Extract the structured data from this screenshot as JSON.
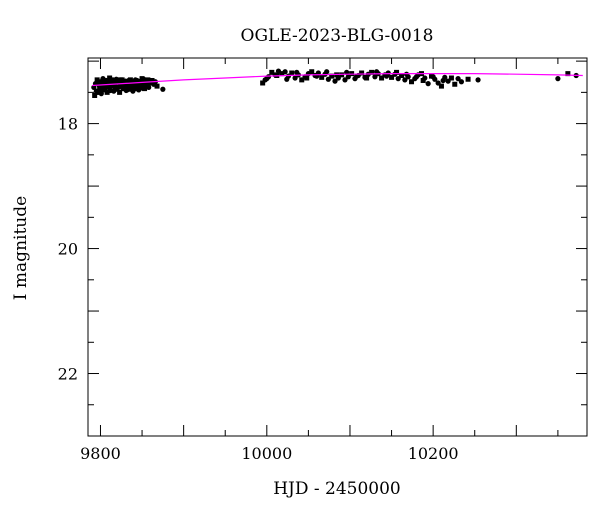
{
  "chart_data": {
    "type": "scatter",
    "title": "OGLE-2023-BLG-0018",
    "xlabel": "HJD - 2450000",
    "ylabel": "I magnitude",
    "xlim": [
      9785,
      10385
    ],
    "ylim": [
      23.0,
      16.95
    ],
    "y_inverted": true,
    "grid": false,
    "x_ticks": [
      9800,
      10000,
      10200
    ],
    "y_ticks": [
      18,
      20,
      22
    ],
    "x_minor_step": 50,
    "y_minor_step": 0.5,
    "colors": {
      "points": "#000000",
      "model": "#ff00ff",
      "axes": "#000000"
    },
    "series": [
      {
        "points": [
          [
            9792,
            17.42
          ],
          [
            9793,
            17.55
          ],
          [
            9794,
            17.36
          ],
          [
            9795,
            17.48
          ],
          [
            9796,
            17.3
          ],
          [
            9797,
            17.5
          ],
          [
            9798,
            17.38
          ],
          [
            9799,
            17.45
          ],
          [
            9800,
            17.33
          ],
          [
            9801,
            17.52
          ],
          [
            9802,
            17.4
          ],
          [
            9803,
            17.28
          ],
          [
            9804,
            17.46
          ],
          [
            9805,
            17.35
          ],
          [
            9806,
            17.43
          ],
          [
            9807,
            17.31
          ],
          [
            9808,
            17.5
          ],
          [
            9809,
            17.37
          ],
          [
            9810,
            17.42
          ],
          [
            9811,
            17.27
          ],
          [
            9812,
            17.47
          ],
          [
            9813,
            17.34
          ],
          [
            9814,
            17.4
          ],
          [
            9815,
            17.3
          ],
          [
            9816,
            17.48
          ],
          [
            9817,
            17.36
          ],
          [
            9818,
            17.43
          ],
          [
            9819,
            17.29
          ],
          [
            9820,
            17.45
          ],
          [
            9821,
            17.33
          ],
          [
            9822,
            17.41
          ],
          [
            9823,
            17.5
          ],
          [
            9824,
            17.35
          ],
          [
            9825,
            17.38
          ],
          [
            9826,
            17.3
          ],
          [
            9827,
            17.44
          ],
          [
            9828,
            17.36
          ],
          [
            9829,
            17.42
          ],
          [
            9830,
            17.32
          ],
          [
            9831,
            17.47
          ],
          [
            9832,
            17.37
          ],
          [
            9833,
            17.4
          ],
          [
            9834,
            17.31
          ],
          [
            9835,
            17.45
          ],
          [
            9836,
            17.35
          ],
          [
            9837,
            17.42
          ],
          [
            9838,
            17.33
          ],
          [
            9839,
            17.48
          ],
          [
            9840,
            17.36
          ],
          [
            9841,
            17.41
          ],
          [
            9842,
            17.3
          ],
          [
            9843,
            17.44
          ],
          [
            9844,
            17.38
          ],
          [
            9845,
            17.34
          ],
          [
            9846,
            17.46
          ],
          [
            9847,
            17.39
          ],
          [
            9848,
            17.32
          ],
          [
            9849,
            17.43
          ],
          [
            9850,
            17.28
          ],
          [
            9851,
            17.4
          ],
          [
            9852,
            17.36
          ],
          [
            9853,
            17.44
          ],
          [
            9854,
            17.33
          ],
          [
            9855,
            17.38
          ],
          [
            9857,
            17.3
          ],
          [
            9858,
            17.42
          ],
          [
            9860,
            17.35
          ],
          [
            9862,
            17.31
          ],
          [
            9864,
            17.37
          ],
          [
            9866,
            17.33
          ],
          [
            9868,
            17.4
          ],
          [
            9875,
            17.45
          ],
          [
            9796,
            17.34
          ],
          [
            9800,
            17.45
          ],
          [
            9804,
            17.32
          ],
          [
            9808,
            17.4
          ],
          [
            9812,
            17.31
          ],
          [
            9816,
            17.39
          ],
          [
            9820,
            17.44
          ],
          [
            9824,
            17.3
          ],
          [
            9828,
            17.4
          ],
          [
            9832,
            17.46
          ],
          [
            9836,
            17.3
          ],
          [
            9840,
            17.44
          ],
          [
            9844,
            17.31
          ],
          [
            9848,
            17.41
          ],
          [
            9852,
            17.29
          ],
          [
            9856,
            17.37
          ],
          [
            9995,
            17.35
          ],
          [
            9998,
            17.3
          ],
          [
            10002,
            17.25
          ],
          [
            10006,
            17.18
          ],
          [
            10010,
            17.22
          ],
          [
            10014,
            17.16
          ],
          [
            10018,
            17.2
          ],
          [
            10022,
            17.17
          ],
          [
            10026,
            17.24
          ],
          [
            10030,
            17.19
          ],
          [
            10034,
            17.27
          ],
          [
            10038,
            17.22
          ],
          [
            10042,
            17.3
          ],
          [
            10046,
            17.25
          ],
          [
            10050,
            17.2
          ],
          [
            10054,
            17.17
          ],
          [
            10058,
            17.23
          ],
          [
            10062,
            17.19
          ],
          [
            10066,
            17.26
          ],
          [
            10070,
            17.21
          ],
          [
            10074,
            17.29
          ],
          [
            10078,
            17.24
          ],
          [
            10082,
            17.32
          ],
          [
            10086,
            17.27
          ],
          [
            10090,
            17.22
          ],
          [
            10094,
            17.3
          ],
          [
            10098,
            17.25
          ],
          [
            10102,
            17.2
          ],
          [
            10106,
            17.28
          ],
          [
            10110,
            17.23
          ],
          [
            10114,
            17.19
          ],
          [
            10118,
            17.26
          ],
          [
            10122,
            17.21
          ],
          [
            10126,
            17.18
          ],
          [
            10130,
            17.25
          ],
          [
            10134,
            17.2
          ],
          [
            10138,
            17.27
          ],
          [
            10142,
            17.22
          ],
          [
            10146,
            17.19
          ],
          [
            10150,
            17.26
          ],
          [
            10154,
            17.21
          ],
          [
            10158,
            17.28
          ],
          [
            10162,
            17.23
          ],
          [
            10166,
            17.3
          ],
          [
            10170,
            17.25
          ],
          [
            10174,
            17.33
          ],
          [
            10178,
            17.28
          ],
          [
            10182,
            17.22
          ],
          [
            10186,
            17.2
          ],
          [
            10190,
            17.27
          ],
          [
            10194,
            17.36
          ],
          [
            10198,
            17.24
          ],
          [
            10202,
            17.29
          ],
          [
            10206,
            17.35
          ],
          [
            10210,
            17.4
          ],
          [
            10214,
            17.26
          ],
          [
            10218,
            17.32
          ],
          [
            10222,
            17.27
          ],
          [
            10230,
            17.28
          ],
          [
            10234,
            17.33
          ],
          [
            10242,
            17.29
          ],
          [
            10254,
            17.3
          ],
          [
            10350,
            17.28
          ],
          [
            10362,
            17.2
          ],
          [
            10372,
            17.23
          ],
          [
            10000,
            17.28
          ],
          [
            10012,
            17.23
          ],
          [
            10024,
            17.29
          ],
          [
            10036,
            17.18
          ],
          [
            10048,
            17.27
          ],
          [
            10060,
            17.24
          ],
          [
            10072,
            17.17
          ],
          [
            10084,
            17.22
          ],
          [
            10096,
            17.18
          ],
          [
            10108,
            17.24
          ],
          [
            10120,
            17.27
          ],
          [
            10132,
            17.17
          ],
          [
            10144,
            17.24
          ],
          [
            10156,
            17.18
          ],
          [
            10168,
            17.21
          ],
          [
            10180,
            17.25
          ],
          [
            10188,
            17.31
          ],
          [
            10200,
            17.25
          ],
          [
            10212,
            17.31
          ],
          [
            10226,
            17.37
          ]
        ]
      },
      {
        "kind": "model-curve",
        "points": [
          [
            9790,
            17.39
          ],
          [
            9850,
            17.34
          ],
          [
            9900,
            17.3
          ],
          [
            9950,
            17.27
          ],
          [
            10000,
            17.24
          ],
          [
            10050,
            17.22
          ],
          [
            10100,
            17.21
          ],
          [
            10150,
            17.2
          ],
          [
            10200,
            17.2
          ],
          [
            10250,
            17.2
          ],
          [
            10300,
            17.21
          ],
          [
            10350,
            17.22
          ],
          [
            10380,
            17.23
          ]
        ]
      }
    ]
  }
}
